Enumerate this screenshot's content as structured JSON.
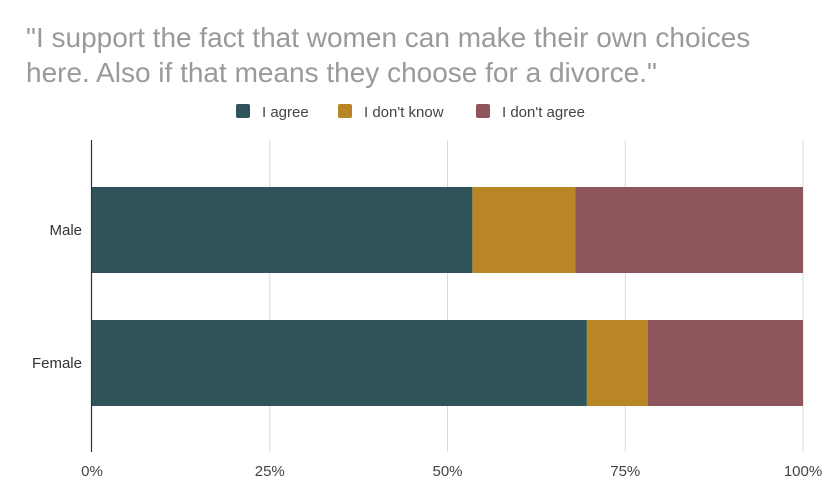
{
  "chart_data": {
    "type": "bar",
    "orientation": "horizontal",
    "stacked": "percent",
    "title_lines": [
      "\"I support the fact that women can make their own choices",
      "here. Also if that means they choose for a divorce.\""
    ],
    "categories": [
      "Male",
      "Female"
    ],
    "series": [
      {
        "name": "I agree",
        "color": "#2e535a",
        "values": [
          53.5,
          69.6
        ]
      },
      {
        "name": "I don't know",
        "color": "#b88625",
        "values": [
          14.5,
          8.6
        ]
      },
      {
        "name": "I don't agree",
        "color": "#8e555c",
        "values": [
          32.0,
          21.8
        ]
      }
    ],
    "xlim": [
      0,
      100
    ],
    "x_ticks": [
      "0%",
      "25%",
      "50%",
      "75%",
      "100%"
    ],
    "grid": true,
    "legend_position": "top-center"
  }
}
